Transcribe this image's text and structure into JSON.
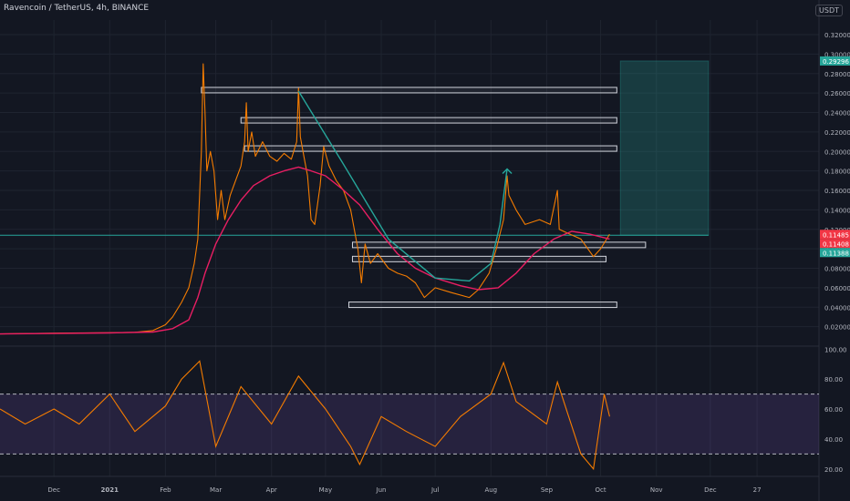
{
  "header": {
    "title": "Ravencoin / TetherUS, 4h, BINANCE",
    "currency": "USDT"
  },
  "chart_data": [
    {
      "type": "line",
      "title": "Ravencoin / TetherUS, 4h, BINANCE",
      "x_axis_labels": [
        "Dec",
        "2021",
        "Feb",
        "Mar",
        "Apr",
        "May",
        "Jun",
        "Jul",
        "Aug",
        "Sep",
        "Oct",
        "Nov",
        "Dec",
        "27"
      ],
      "y_ticks": [
        0.02,
        0.04,
        0.06,
        0.08,
        0.1,
        0.12,
        0.14,
        0.16,
        0.18,
        0.2,
        0.22,
        0.24,
        0.26,
        0.28,
        0.3,
        0.32
      ],
      "y_tick_labels": [
        "0.02000",
        "0.04000",
        "0.06000",
        "0.08000",
        "0.10000",
        "0.12000",
        "0.14000",
        "0.16000",
        "0.18000",
        "0.20000",
        "0.22000",
        "0.24000",
        "0.26000",
        "0.28000",
        "0.30000",
        "0.32000"
      ],
      "ylim": [
        0.0,
        0.335
      ],
      "price_labels": [
        {
          "text": "0.29296",
          "value": 0.29296,
          "color": "#26a69a"
        },
        {
          "text": "0.11485",
          "value": 0.11485,
          "color": "#f23645"
        },
        {
          "text": "0.11408",
          "value": 0.11408,
          "color": "#f23645"
        },
        {
          "text": "0.11388",
          "value": 0.11388,
          "color": "#26a69a"
        }
      ],
      "series": [
        {
          "style": "price",
          "color": "#f57c00",
          "points": [
            [
              "2020-11-01",
              0.0125
            ],
            [
              "2020-11-20",
              0.013
            ],
            [
              "2020-12-10",
              0.0135
            ],
            [
              "2020-12-31",
              0.0138
            ],
            [
              "2021-01-15",
              0.0142
            ],
            [
              "2021-01-25",
              0.016
            ],
            [
              "2021-02-01",
              0.022
            ],
            [
              "2021-02-05",
              0.03
            ],
            [
              "2021-02-10",
              0.045
            ],
            [
              "2021-02-14",
              0.06
            ],
            [
              "2021-02-17",
              0.085
            ],
            [
              "2021-02-19",
              0.11
            ],
            [
              "2021-02-21",
              0.2
            ],
            [
              "2021-02-22",
              0.29
            ],
            [
              "2021-02-23",
              0.24
            ],
            [
              "2021-02-24",
              0.18
            ],
            [
              "2021-02-26",
              0.2
            ],
            [
              "2021-02-28",
              0.18
            ],
            [
              "2021-03-02",
              0.13
            ],
            [
              "2021-03-04",
              0.16
            ],
            [
              "2021-03-06",
              0.13
            ],
            [
              "2021-03-09",
              0.155
            ],
            [
              "2021-03-12",
              0.17
            ],
            [
              "2021-03-15",
              0.185
            ],
            [
              "2021-03-17",
              0.21
            ],
            [
              "2021-03-18",
              0.25
            ],
            [
              "2021-03-19",
              0.2
            ],
            [
              "2021-03-21",
              0.22
            ],
            [
              "2021-03-23",
              0.195
            ],
            [
              "2021-03-27",
              0.21
            ],
            [
              "2021-03-31",
              0.195
            ],
            [
              "2021-04-04",
              0.19
            ],
            [
              "2021-04-08",
              0.198
            ],
            [
              "2021-04-12",
              0.192
            ],
            [
              "2021-04-15",
              0.21
            ],
            [
              "2021-04-16",
              0.265
            ],
            [
              "2021-04-17",
              0.215
            ],
            [
              "2021-04-19",
              0.195
            ],
            [
              "2021-04-21",
              0.175
            ],
            [
              "2021-04-23",
              0.13
            ],
            [
              "2021-04-25",
              0.125
            ],
            [
              "2021-04-28",
              0.165
            ],
            [
              "2021-04-30",
              0.205
            ],
            [
              "2021-05-03",
              0.185
            ],
            [
              "2021-05-07",
              0.17
            ],
            [
              "2021-05-11",
              0.16
            ],
            [
              "2021-05-15",
              0.14
            ],
            [
              "2021-05-19",
              0.1
            ],
            [
              "2021-05-21",
              0.065
            ],
            [
              "2021-05-23",
              0.105
            ],
            [
              "2021-05-26",
              0.085
            ],
            [
              "2021-05-30",
              0.095
            ],
            [
              "2021-06-05",
              0.08
            ],
            [
              "2021-06-10",
              0.075
            ],
            [
              "2021-06-15",
              0.072
            ],
            [
              "2021-06-20",
              0.065
            ],
            [
              "2021-06-25",
              0.05
            ],
            [
              "2021-07-01",
              0.06
            ],
            [
              "2021-07-10",
              0.055
            ],
            [
              "2021-07-20",
              0.05
            ],
            [
              "2021-07-25",
              0.058
            ],
            [
              "2021-07-31",
              0.075
            ],
            [
              "2021-08-04",
              0.1
            ],
            [
              "2021-08-08",
              0.13
            ],
            [
              "2021-08-10",
              0.175
            ],
            [
              "2021-08-11",
              0.155
            ],
            [
              "2021-08-15",
              0.14
            ],
            [
              "2021-08-20",
              0.125
            ],
            [
              "2021-08-28",
              0.13
            ],
            [
              "2021-09-03",
              0.125
            ],
            [
              "2021-09-07",
              0.16
            ],
            [
              "2021-09-08",
              0.12
            ],
            [
              "2021-09-14",
              0.115
            ],
            [
              "2021-09-20",
              0.11
            ],
            [
              "2021-09-27",
              0.092
            ],
            [
              "2021-10-01",
              0.1
            ],
            [
              "2021-10-06",
              0.115
            ]
          ]
        },
        {
          "style": "moving_average",
          "color": "#e91e63",
          "points": [
            [
              "2020-11-01",
              0.0125
            ],
            [
              "2020-12-31",
              0.0136
            ],
            [
              "2021-01-25",
              0.0145
            ],
            [
              "2021-02-05",
              0.018
            ],
            [
              "2021-02-14",
              0.027
            ],
            [
              "2021-02-19",
              0.05
            ],
            [
              "2021-02-23",
              0.075
            ],
            [
              "2021-03-01",
              0.105
            ],
            [
              "2021-03-08",
              0.13
            ],
            [
              "2021-03-15",
              0.15
            ],
            [
              "2021-03-22",
              0.165
            ],
            [
              "2021-03-31",
              0.175
            ],
            [
              "2021-04-08",
              0.18
            ],
            [
              "2021-04-16",
              0.184
            ],
            [
              "2021-04-23",
              0.18
            ],
            [
              "2021-05-01",
              0.175
            ],
            [
              "2021-05-10",
              0.162
            ],
            [
              "2021-05-20",
              0.145
            ],
            [
              "2021-05-30",
              0.12
            ],
            [
              "2021-06-10",
              0.095
            ],
            [
              "2021-06-20",
              0.08
            ],
            [
              "2021-07-01",
              0.07
            ],
            [
              "2021-07-15",
              0.062
            ],
            [
              "2021-07-25",
              0.058
            ],
            [
              "2021-08-05",
              0.06
            ],
            [
              "2021-08-15",
              0.075
            ],
            [
              "2021-08-25",
              0.095
            ],
            [
              "2021-09-05",
              0.11
            ],
            [
              "2021-09-15",
              0.118
            ],
            [
              "2021-09-25",
              0.115
            ],
            [
              "2021-10-06",
              0.11
            ]
          ]
        },
        {
          "style": "curve",
          "color": "#26a69a",
          "points": [
            [
              "2021-04-16",
              0.262
            ],
            [
              "2021-05-10",
              0.19
            ],
            [
              "2021-06-05",
              0.11
            ],
            [
              "2021-07-01",
              0.07
            ],
            [
              "2021-07-20",
              0.067
            ],
            [
              "2021-08-01",
              0.085
            ],
            [
              "2021-08-06",
              0.125
            ],
            [
              "2021-08-10",
              0.182
            ]
          ]
        }
      ],
      "annotations": [
        {
          "type": "zone",
          "x0": "2021-02-21",
          "x1": "2021-10-10",
          "y": 0.263
        },
        {
          "type": "zone",
          "x0": "2021-03-15",
          "x1": "2021-10-10",
          "y": 0.232
        },
        {
          "type": "zone",
          "x0": "2021-03-17",
          "x1": "2021-10-10",
          "y": 0.203
        },
        {
          "type": "zone",
          "x0": "2021-05-16",
          "x1": "2021-10-26",
          "y": 0.104
        },
        {
          "type": "zone",
          "x0": "2021-05-16",
          "x1": "2021-10-04",
          "y": 0.0895
        },
        {
          "type": "zone",
          "x0": "2021-05-14",
          "x1": "2021-10-10",
          "y": 0.0425
        },
        {
          "type": "target",
          "x0": "2021-10-12",
          "x1": "2021-11-30",
          "y0": 0.11388,
          "y1": 0.29296
        }
      ]
    },
    {
      "type": "line",
      "name": "RSI",
      "y_ticks": [
        20,
        40,
        60,
        80,
        100
      ],
      "y_tick_labels": [
        "20.00",
        "40.00",
        "60.00",
        "80.00",
        "100.00"
      ],
      "ylim": [
        15,
        102
      ],
      "bands": [
        30,
        70
      ],
      "color": "#f57c00",
      "points": [
        [
          "2020-11-01",
          60
        ],
        [
          "2020-11-15",
          50
        ],
        [
          "2020-12-01",
          60
        ],
        [
          "2020-12-15",
          50
        ],
        [
          "2021-01-01",
          70
        ],
        [
          "2021-01-15",
          45
        ],
        [
          "2021-02-01",
          62
        ],
        [
          "2021-02-10",
          80
        ],
        [
          "2021-02-20",
          92
        ],
        [
          "2021-03-01",
          35
        ],
        [
          "2021-03-15",
          75
        ],
        [
          "2021-04-01",
          50
        ],
        [
          "2021-04-16",
          82
        ],
        [
          "2021-05-01",
          60
        ],
        [
          "2021-05-15",
          35
        ],
        [
          "2021-05-20",
          23
        ],
        [
          "2021-06-01",
          55
        ],
        [
          "2021-06-15",
          45
        ],
        [
          "2021-07-01",
          35
        ],
        [
          "2021-07-15",
          55
        ],
        [
          "2021-08-01",
          70
        ],
        [
          "2021-08-08",
          91
        ],
        [
          "2021-08-15",
          65
        ],
        [
          "2021-09-01",
          50
        ],
        [
          "2021-09-07",
          78
        ],
        [
          "2021-09-20",
          30
        ],
        [
          "2021-09-27",
          20
        ],
        [
          "2021-10-03",
          70
        ],
        [
          "2021-10-06",
          55
        ]
      ]
    }
  ]
}
